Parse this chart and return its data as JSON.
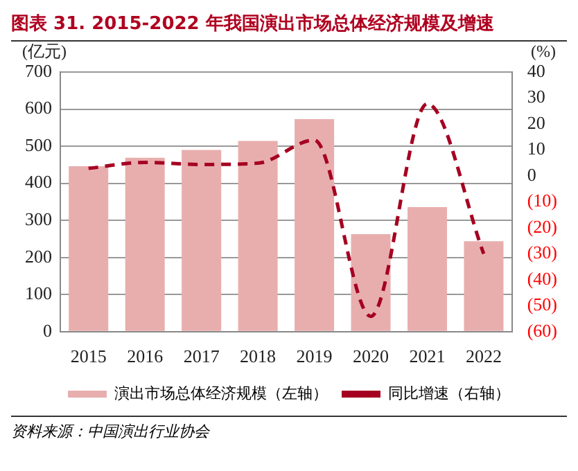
{
  "chart_data": {
    "type": "bar",
    "title": "图表 31. 2015-2022 年我国演出市场总体经济规模及增速",
    "categories": [
      "2015",
      "2016",
      "2017",
      "2018",
      "2019",
      "2020",
      "2021",
      "2022"
    ],
    "series": [
      {
        "name": "演出市场总体经济规模（左轴）",
        "color": "#e8aeae",
        "values": [
          446,
          469,
          490,
          514,
          573,
          263,
          336,
          244
        ]
      },
      {
        "name": "同比增速（右轴）",
        "type": "line",
        "axis": "y2",
        "color": "#a50021",
        "line_style": "dashed",
        "marker": "none",
        "values": [
          2.9,
          5.2,
          4.4,
          4.9,
          13.8,
          -54.1,
          27.8,
          -30.0
        ]
      }
    ],
    "ylabel": "(亿元)",
    "y2label": "(%)",
    "ylim": [
      0,
      700
    ],
    "yticks": [
      0,
      100,
      200,
      300,
      400,
      500,
      600,
      700
    ],
    "y2lim": [
      -60,
      40
    ],
    "y2ticks": [
      {
        "value": -60,
        "label": "(60)"
      },
      {
        "value": -50,
        "label": "(50)"
      },
      {
        "value": -40,
        "label": "(40)"
      },
      {
        "value": -30,
        "label": "(30)"
      },
      {
        "value": -20,
        "label": "(20)"
      },
      {
        "value": -10,
        "label": "(10)"
      },
      0,
      10,
      20,
      30,
      40
    ],
    "grid": "y",
    "legend": "bottom",
    "annotations": [
      "资料来源：中国演出行业协会"
    ]
  }
}
